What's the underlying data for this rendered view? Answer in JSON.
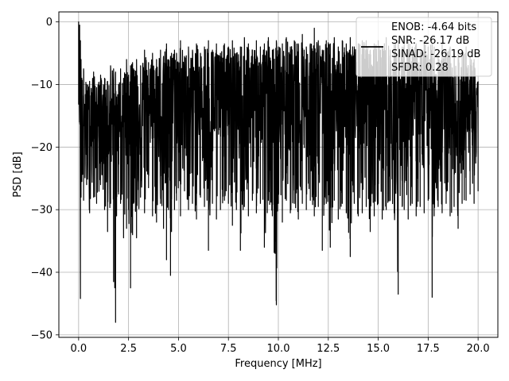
{
  "chart_data": {
    "type": "line",
    "title": "",
    "xlabel": "Frequency [MHz]",
    "ylabel": "PSD [dB]",
    "xlim": [
      -0.99,
      20.99
    ],
    "ylim": [
      -50.4,
      1.6
    ],
    "xticks": [
      0.0,
      2.5,
      5.0,
      7.5,
      10.0,
      12.5,
      15.0,
      17.5,
      20.0
    ],
    "xtick_labels": [
      "0.0",
      "2.5",
      "5.0",
      "7.5",
      "10.0",
      "12.5",
      "15.0",
      "17.5",
      "20.0"
    ],
    "yticks": [
      0,
      -10,
      -20,
      -30,
      -40,
      -50
    ],
    "ytick_labels": [
      "0",
      "−10",
      "−20",
      "−30",
      "−40",
      "−50"
    ],
    "grid": true,
    "legend_position": "top-right",
    "legend": {
      "line_color": "#000000",
      "lines": [
        "ENOB: -4.64 bits",
        "SNR: -26.17 dB",
        "SINAD: -26.19 dB",
        "SFDR: 0.28"
      ]
    },
    "series": [
      {
        "color": "#000000",
        "x": [
          0.0,
          0.05,
          0.09,
          0.12,
          0.16,
          0.25,
          0.4,
          0.55,
          0.75,
          0.9,
          1.1,
          1.3,
          1.45,
          1.6,
          1.75,
          1.85,
          1.9,
          2.0,
          2.1,
          2.25,
          2.4,
          2.5,
          2.6,
          2.7,
          2.75,
          2.9,
          3.1,
          3.3,
          3.5,
          3.7,
          3.9,
          4.1,
          4.25,
          4.4,
          4.5,
          4.6,
          4.65,
          4.8,
          4.9,
          5.1,
          5.3,
          5.5,
          5.7,
          5.9,
          6.1,
          6.3,
          6.5,
          6.7,
          6.9,
          7.1,
          7.3,
          7.5,
          7.7,
          7.9,
          8.1,
          8.3,
          8.5,
          8.7,
          8.9,
          9.1,
          9.3,
          9.5,
          9.7,
          9.9,
          10.0,
          10.2,
          10.4,
          10.6,
          10.8,
          11.0,
          11.2,
          11.4,
          11.6,
          11.8,
          12.0,
          12.2,
          12.4,
          12.6,
          12.8,
          13.0,
          13.2,
          13.4,
          13.6,
          13.8,
          14.0,
          14.2,
          14.4,
          14.6,
          14.8,
          15.0,
          15.2,
          15.4,
          15.6,
          15.8,
          16.0,
          16.2,
          16.3,
          16.5,
          16.7,
          16.9,
          17.1,
          17.3,
          17.5,
          17.7,
          17.8,
          18.0,
          18.2,
          18.4,
          18.6,
          18.8,
          19.0,
          19.2,
          19.4,
          19.6,
          19.8,
          20.0
        ],
        "y_max": [
          0.0,
          -0.5,
          -3.0,
          -6.0,
          -9.0,
          -7.5,
          -10.0,
          -9.5,
          -8.0,
          -10.5,
          -8.5,
          -9.0,
          -9.5,
          -7.0,
          -7.5,
          -8.0,
          -12.0,
          -10.0,
          -7.5,
          -9.0,
          -6.0,
          -8.5,
          -7.0,
          -6.5,
          -7.5,
          -6.0,
          -7.0,
          -4.5,
          -6.5,
          -5.0,
          -6.0,
          -4.5,
          -5.5,
          -3.5,
          -6.0,
          -5.5,
          -5.0,
          -4.5,
          -5.0,
          -3.0,
          -5.5,
          -4.0,
          -4.5,
          -3.5,
          -5.0,
          -4.0,
          -3.0,
          -4.5,
          -3.5,
          -5.0,
          -3.5,
          -4.0,
          -3.0,
          -5.0,
          -4.0,
          -2.5,
          -3.5,
          -4.5,
          -3.0,
          -4.0,
          -3.5,
          -2.5,
          -4.5,
          -3.0,
          -4.0,
          -3.5,
          -2.5,
          -4.0,
          -3.0,
          -3.5,
          -2.0,
          -4.0,
          -3.5,
          -1.0,
          -3.0,
          -4.5,
          -3.0,
          -3.5,
          -2.5,
          -4.0,
          -3.0,
          -3.5,
          -2.5,
          -4.0,
          -3.5,
          -3.0,
          -3.0,
          -4.5,
          -3.5,
          -3.0,
          -4.0,
          -2.5,
          -4.5,
          -3.5,
          -3.0,
          -4.0,
          -3.5,
          -3.0,
          -4.0,
          -3.5,
          -4.5,
          -3.0,
          -4.0,
          -3.5,
          -4.0,
          -5.0,
          -3.5,
          -4.5,
          -4.0,
          -5.0,
          -4.5,
          -5.0,
          -4.0,
          -5.5,
          -6.0,
          -9.5
        ],
        "y_min": [
          -3.0,
          -16.0,
          -44.2,
          -28.0,
          -25.5,
          -28.5,
          -26.0,
          -30.5,
          -28.0,
          -29.0,
          -26.0,
          -30.0,
          -33.5,
          -29.0,
          -41.5,
          -48.0,
          -31.0,
          -27.5,
          -29.0,
          -34.5,
          -33.0,
          -30.0,
          -42.5,
          -34.0,
          -29.0,
          -34.5,
          -28.0,
          -30.5,
          -26.5,
          -31.0,
          -32.0,
          -29.0,
          -33.0,
          -38.0,
          -30.0,
          -40.5,
          -33.5,
          -30.0,
          -28.5,
          -31.0,
          -27.0,
          -30.0,
          -29.0,
          -31.5,
          -28.0,
          -29.5,
          -36.5,
          -29.0,
          -31.5,
          -30.0,
          -28.5,
          -29.0,
          -32.5,
          -30.0,
          -36.5,
          -29.5,
          -31.0,
          -28.5,
          -30.5,
          -29.0,
          -36.0,
          -28.5,
          -31.0,
          -45.2,
          -29.0,
          -32.0,
          -28.5,
          -30.5,
          -29.0,
          -31.5,
          -29.0,
          -30.0,
          -28.5,
          -31.0,
          -29.5,
          -36.5,
          -29.0,
          -36.0,
          -28.5,
          -31.5,
          -29.0,
          -30.5,
          -37.5,
          -29.0,
          -31.0,
          -30.5,
          -29.5,
          -33.5,
          -31.0,
          -29.0,
          -31.5,
          -30.0,
          -28.5,
          -30.5,
          -43.5,
          -29.5,
          -30.0,
          -31.5,
          -29.0,
          -31.0,
          -29.5,
          -30.5,
          -28.5,
          -44.0,
          -31.0,
          -29.5,
          -30.5,
          -29.0,
          -31.0,
          -29.5,
          -33.0,
          -29.0,
          -28.5,
          -27.5,
          -29.0,
          -27.0
        ],
        "y_typical": [
          -15.0,
          -15.0,
          -16.0,
          -15.5,
          -16.0,
          -16.5,
          -17.0,
          -16.0,
          -16.5,
          -17.0,
          -16.0,
          -16.5,
          -16.0,
          -15.5,
          -16.0,
          -16.5,
          -17.0,
          -16.0,
          -15.5,
          -16.0,
          -15.5,
          -16.0,
          -15.0,
          -15.5,
          -16.0,
          -15.0,
          -15.5,
          -15.0,
          -14.5,
          -15.0,
          -14.5,
          -15.0,
          -14.5,
          -14.0,
          -14.5,
          -15.0,
          -14.5,
          -14.0,
          -14.5,
          -14.0,
          -14.5,
          -14.0,
          -13.5,
          -14.0,
          -14.5,
          -13.5,
          -14.0,
          -13.5,
          -14.0,
          -13.5,
          -14.0,
          -13.5,
          -13.0,
          -13.5,
          -14.0,
          -13.5,
          -13.0,
          -13.5,
          -14.0,
          -13.5,
          -13.0,
          -13.5,
          -14.0,
          -13.5,
          -13.0,
          -13.5,
          -13.0,
          -13.5,
          -14.0,
          -13.5,
          -13.0,
          -13.5,
          -14.0,
          -13.5,
          -13.0,
          -13.5,
          -14.0,
          -13.5,
          -13.0,
          -13.5,
          -14.0,
          -13.5,
          -13.0,
          -13.5,
          -14.0,
          -13.5,
          -13.0,
          -13.5,
          -14.0,
          -13.5,
          -13.0,
          -13.5,
          -14.0,
          -14.5,
          -14.0,
          -13.5,
          -14.0,
          -14.5,
          -14.0,
          -14.5,
          -15.0,
          -14.5,
          -14.0,
          -14.5,
          -15.0,
          -14.5,
          -15.0,
          -14.5,
          -15.0,
          -15.5,
          -15.0,
          -15.5,
          -15.0,
          -15.5,
          -16.0,
          -16.0
        ]
      }
    ]
  }
}
